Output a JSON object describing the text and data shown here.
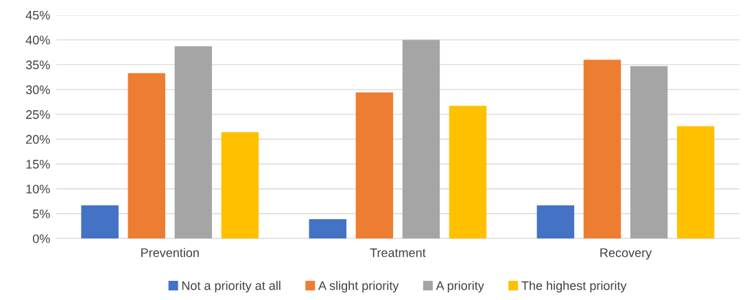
{
  "chart_data": {
    "type": "bar",
    "categories": [
      "Prevention",
      "Treatment",
      "Recovery"
    ],
    "series": [
      {
        "name": "Not a priority at all",
        "color": "#4472c4",
        "values": [
          6.7,
          3.9,
          6.7
        ]
      },
      {
        "name": "A slight priority",
        "color": "#ed7d31",
        "values": [
          33.3,
          29.4,
          36.0
        ]
      },
      {
        "name": "A priority",
        "color": "#a5a5a5",
        "values": [
          38.7,
          40.0,
          34.7
        ]
      },
      {
        "name": "The highest priority",
        "color": "#ffc000",
        "values": [
          21.4,
          26.7,
          22.6
        ]
      }
    ],
    "ylim": [
      0,
      45
    ],
    "yticks": [
      {
        "value": 0,
        "label": "0%"
      },
      {
        "value": 5,
        "label": "5%"
      },
      {
        "value": 10,
        "label": "10%"
      },
      {
        "value": 15,
        "label": "15%"
      },
      {
        "value": 20,
        "label": "20%"
      },
      {
        "value": 25,
        "label": "25%"
      },
      {
        "value": 30,
        "label": "30%"
      },
      {
        "value": 35,
        "label": "35%"
      },
      {
        "value": 40,
        "label": "40%"
      },
      {
        "value": 45,
        "label": "45%"
      }
    ],
    "grid": "y",
    "legend": "bottom"
  }
}
